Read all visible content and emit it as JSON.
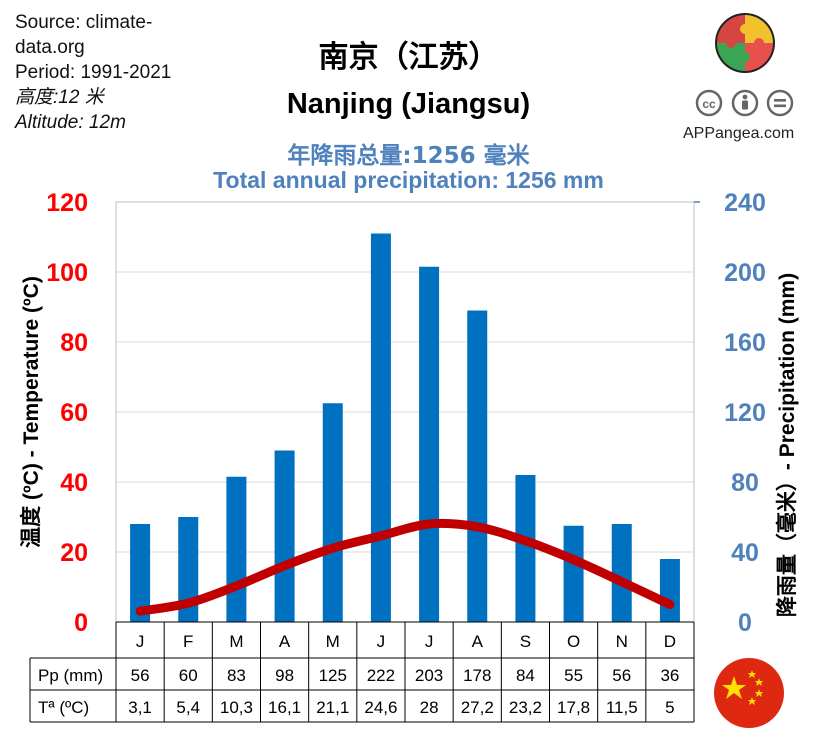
{
  "meta": {
    "source_line1": "Source: climate-",
    "source_line2": "data.org",
    "period": "Period: 1991-2021",
    "altitude_cn": "高度:12 米",
    "altitude_en": "Altitude: 12m"
  },
  "titles": {
    "city_cn": "南京（江苏）",
    "city_en": "Nanjing (Jiangsu)",
    "precip_cn": "年降雨总量:1256 毫米",
    "precip_en": "Total annual precipitation: 1256 mm"
  },
  "branding": {
    "site": "APPangea.com",
    "logo_icon": "puzzle-logo-icon",
    "license_icons": [
      "cc-icon",
      "by-icon",
      "nd-icon"
    ],
    "flag_icon": "china-flag-icon"
  },
  "colors": {
    "temp_axis": "#ff0000",
    "precip_axis": "#4f81bd",
    "bar": "#0070c0",
    "line": "#c00000"
  },
  "chart_data": {
    "type": "bar+line",
    "categories": [
      "J",
      "F",
      "M",
      "A",
      "M",
      "J",
      "J",
      "A",
      "S",
      "O",
      "N",
      "D"
    ],
    "series": [
      {
        "name": "Pp (mm)",
        "type": "bar",
        "axis": "right",
        "values": [
          56,
          60,
          83,
          98,
          125,
          222,
          203,
          178,
          84,
          55,
          56,
          36
        ]
      },
      {
        "name": "Tª (ºC)",
        "type": "line",
        "axis": "left",
        "values": [
          3.1,
          5.4,
          10.3,
          16.1,
          21.1,
          24.6,
          28,
          27.2,
          23.2,
          17.8,
          11.5,
          5
        ]
      }
    ],
    "left_axis": {
      "label": "温度 (ºC) - Temperature  (ºC)",
      "range": [
        0,
        120
      ],
      "ticks": [
        0,
        20,
        40,
        60,
        80,
        100,
        120
      ]
    },
    "right_axis": {
      "label": "降雨量（毫米）- Precipitation  (mm)",
      "range": [
        0,
        240
      ],
      "ticks": [
        0,
        40,
        80,
        120,
        160,
        200,
        240
      ]
    },
    "grid": true,
    "table": {
      "row_labels": [
        "Pp (mm)",
        "Tª (ºC)"
      ],
      "pp_text": [
        "56",
        "60",
        "83",
        "98",
        "125",
        "222",
        "203",
        "178",
        "84",
        "55",
        "56",
        "36"
      ],
      "temp_text": [
        "3,1",
        "5,4",
        "10,3",
        "16,1",
        "21,1",
        "24,6",
        "28",
        "27,2",
        "23,2",
        "17,8",
        "11,5",
        "5"
      ]
    }
  }
}
